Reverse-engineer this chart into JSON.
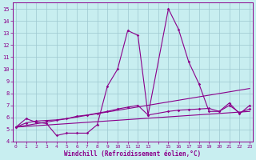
{
  "background_color": "#c8eef0",
  "grid_color": "#9ec8d0",
  "line_color": "#8b008b",
  "xlim": [
    -0.3,
    23.3
  ],
  "ylim": [
    4,
    15.5
  ],
  "xtick_labels": [
    "0",
    "1",
    "2",
    "3",
    "4",
    "5",
    "6",
    "7",
    "8",
    "9",
    "10",
    "11",
    "12",
    "13",
    "",
    "15",
    "16",
    "17",
    "18",
    "19",
    "20",
    "21",
    "22",
    "23"
  ],
  "xtick_pos": [
    0,
    1,
    2,
    3,
    4,
    5,
    6,
    7,
    8,
    9,
    10,
    11,
    12,
    13,
    14,
    15,
    16,
    17,
    18,
    19,
    20,
    21,
    22,
    23
  ],
  "yticks": [
    4,
    5,
    6,
    7,
    8,
    9,
    10,
    11,
    12,
    13,
    14,
    15
  ],
  "xlabel": "Windchill (Refroidissement éolien,°C)",
  "series0": {
    "x": [
      0,
      1,
      2,
      3,
      4,
      5,
      6,
      7,
      8,
      9,
      10,
      11,
      12,
      13,
      15,
      16,
      17,
      18,
      19,
      20,
      21,
      22,
      23
    ],
    "y": [
      5.2,
      5.9,
      5.6,
      5.5,
      4.5,
      4.7,
      4.7,
      4.7,
      5.4,
      8.6,
      10.0,
      13.2,
      12.8,
      6.2,
      15.0,
      13.3,
      10.6,
      8.8,
      6.5,
      6.5,
      7.2,
      6.3,
      7.0
    ]
  },
  "series1": {
    "x": [
      0,
      1,
      2,
      3,
      4,
      5,
      6,
      7,
      8,
      9,
      10,
      11,
      12,
      13,
      15,
      16,
      17,
      18,
      19,
      20,
      21,
      22,
      23
    ],
    "y": [
      5.2,
      5.55,
      5.7,
      5.75,
      5.8,
      5.9,
      6.1,
      6.2,
      6.35,
      6.5,
      6.7,
      6.85,
      7.0,
      6.2,
      6.5,
      6.6,
      6.65,
      6.7,
      6.75,
      6.5,
      7.0,
      6.4,
      6.7
    ]
  },
  "series2": {
    "x": [
      0,
      23
    ],
    "y": [
      5.2,
      8.4
    ]
  },
  "series3": {
    "x": [
      0,
      23
    ],
    "y": [
      5.2,
      6.5
    ]
  }
}
